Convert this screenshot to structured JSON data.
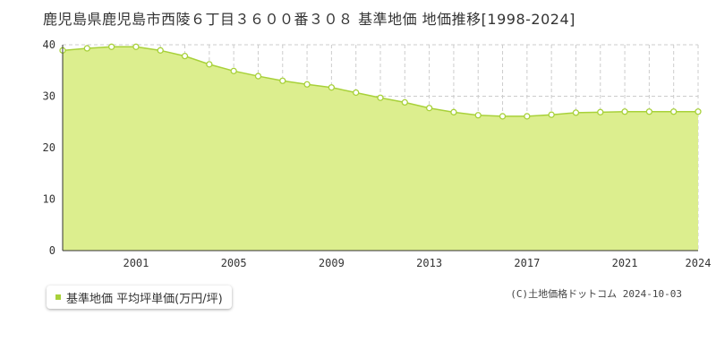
{
  "title": "鹿児島県鹿児島市西陵６丁目３６００番３０８ 基準地価 地価推移[1998-2024]",
  "legend": "基準地価 平均坪単価(万円/坪)",
  "credit": "(C)土地価格ドットコム 2024-10-03",
  "colors": {
    "fill": "#dcee8e",
    "line": "#a8d13a",
    "marker_stroke": "#a8d13a",
    "marker_fill": "#ffffff"
  },
  "chart_data": {
    "type": "area",
    "title": "",
    "xlabel": "",
    "ylabel": "",
    "grid": true,
    "legend_position": "bottom-left",
    "xlim": [
      1998,
      2024
    ],
    "ylim": [
      0,
      40
    ],
    "y_ticks": [
      0,
      10,
      20,
      30,
      40
    ],
    "x_ticks": [
      2001,
      2005,
      2009,
      2013,
      2017,
      2021,
      2024
    ],
    "series": [
      {
        "name": "基準地価 平均坪単価(万円/坪)",
        "x": [
          1998,
          1999,
          2000,
          2001,
          2002,
          2003,
          2004,
          2005,
          2006,
          2007,
          2008,
          2009,
          2010,
          2011,
          2012,
          2013,
          2014,
          2015,
          2016,
          2017,
          2018,
          2019,
          2020,
          2021,
          2022,
          2023,
          2024
        ],
        "values": [
          38.9,
          39.3,
          39.6,
          39.6,
          38.9,
          37.8,
          36.2,
          34.9,
          33.9,
          33.0,
          32.3,
          31.7,
          30.7,
          29.7,
          28.8,
          27.7,
          26.9,
          26.3,
          26.1,
          26.1,
          26.4,
          26.8,
          26.9,
          27.0,
          27.0,
          27.0,
          27.0
        ]
      }
    ]
  }
}
